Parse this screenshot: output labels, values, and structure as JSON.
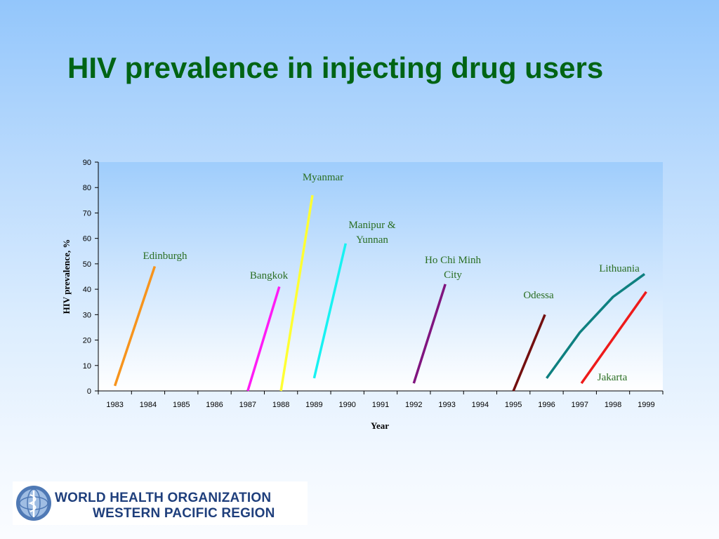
{
  "slide": {
    "title": "HIV prevalence in injecting drug users"
  },
  "chart_data": {
    "type": "line",
    "xlabel": "Year",
    "ylabel": "HIV prevalence, %",
    "ylim": [
      0,
      90
    ],
    "yticks": [
      0,
      10,
      20,
      30,
      40,
      50,
      60,
      70,
      80,
      90
    ],
    "categories": [
      "1983",
      "1984",
      "1985",
      "1986",
      "1987",
      "1988",
      "1989",
      "1990",
      "1991",
      "1992",
      "1993",
      "1994",
      "1995",
      "1996",
      "1997",
      "1998",
      "1999"
    ],
    "grid": false,
    "series": [
      {
        "name": "Edinburgh",
        "color": "#f7941d",
        "points": [
          [
            1983.0,
            2
          ],
          [
            1984.2,
            49
          ]
        ]
      },
      {
        "name": "Bangkok",
        "color": "#ff1cf5",
        "points": [
          [
            1987.0,
            0
          ],
          [
            1987.95,
            41
          ]
        ]
      },
      {
        "name": "Myanmar",
        "color": "#ffff33",
        "points": [
          [
            1988.0,
            0
          ],
          [
            1988.95,
            77
          ]
        ]
      },
      {
        "name": "Manipur & Yunnan",
        "color": "#18f2f2",
        "points": [
          [
            1989.0,
            5
          ],
          [
            1989.95,
            58
          ]
        ]
      },
      {
        "name": "Ho Chi Minh City",
        "color": "#80157f",
        "points": [
          [
            1992.0,
            3
          ],
          [
            1992.95,
            42
          ]
        ]
      },
      {
        "name": "Odessa",
        "color": "#730f0f",
        "points": [
          [
            1995.0,
            0
          ],
          [
            1995.95,
            30
          ]
        ]
      },
      {
        "name": "Lithuania",
        "color": "#0e8080",
        "points": [
          [
            1996.0,
            5
          ],
          [
            1997.0,
            23
          ],
          [
            1998.0,
            37
          ],
          [
            1998.95,
            46
          ]
        ]
      },
      {
        "name": "Jakarta",
        "color": "#ee1a1a",
        "points": [
          [
            1997.05,
            3
          ],
          [
            1999.0,
            39
          ]
        ]
      }
    ]
  },
  "logo": {
    "line1": "WORLD HEALTH ORGANIZATION",
    "line2": "WESTERN PACIFIC REGION",
    "emblem_icon": "who-emblem-icon"
  }
}
